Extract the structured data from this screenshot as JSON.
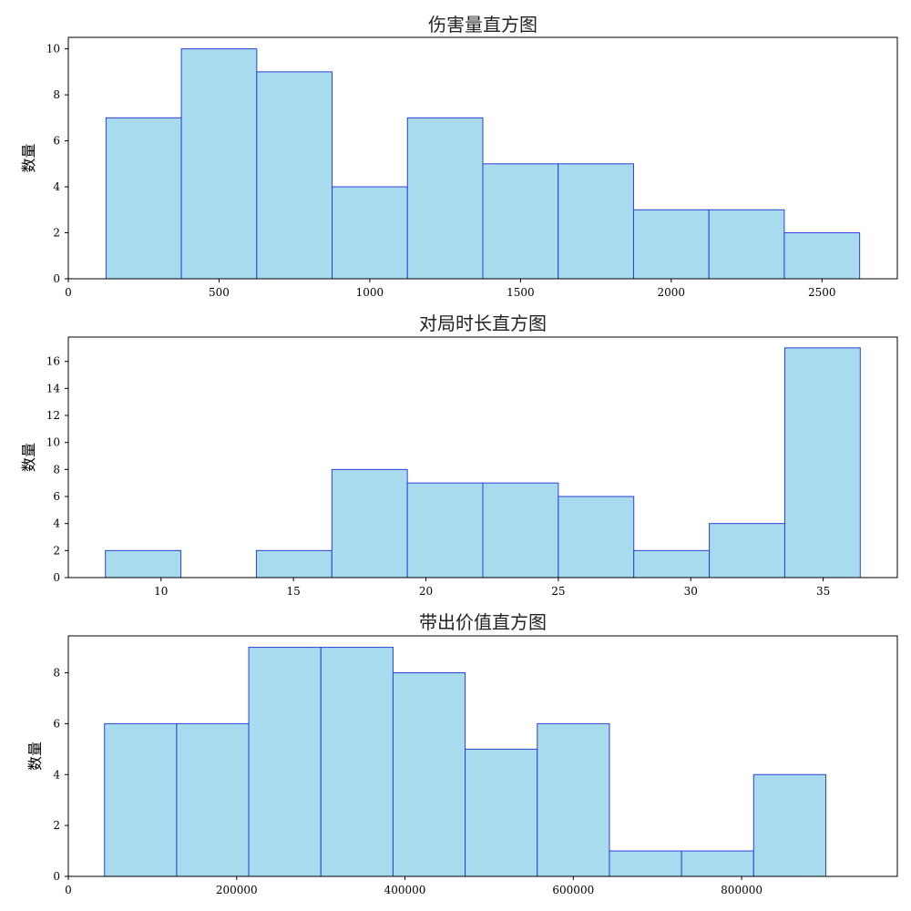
{
  "chart_data": [
    {
      "type": "bar",
      "title": "伤害量直方图",
      "ylabel": "数量",
      "xlabel": "",
      "bin_edges": [
        125,
        375,
        625,
        875,
        1125,
        1375,
        1625,
        1875,
        2125,
        2375,
        2625
      ],
      "values": [
        7,
        10,
        9,
        4,
        7,
        5,
        5,
        3,
        3,
        2
      ],
      "xlim": [
        0,
        2750
      ],
      "ylim": [
        0,
        10.5
      ],
      "xticks": [
        0,
        500,
        1000,
        1500,
        2000,
        2500
      ],
      "yticks": [
        0,
        2,
        4,
        6,
        8,
        10
      ],
      "bar_color": "#a9dbef",
      "edge_color": "#2b3fd6"
    },
    {
      "type": "bar",
      "title": "对局时长直方图",
      "ylabel": "数量",
      "xlabel": "",
      "bin_edges": [
        7.9,
        10.75,
        13.6,
        16.45,
        19.3,
        22.15,
        25.0,
        27.85,
        30.7,
        33.55,
        36.4
      ],
      "values": [
        2,
        0,
        2,
        8,
        7,
        7,
        6,
        2,
        4,
        17
      ],
      "xlim": [
        6.5,
        37.8
      ],
      "ylim": [
        0,
        17.8
      ],
      "xticks": [
        10,
        15,
        20,
        25,
        30,
        35
      ],
      "yticks": [
        0,
        2,
        4,
        6,
        8,
        10,
        12,
        14,
        16
      ],
      "bar_color": "#a9dbef",
      "edge_color": "#2b3fd6"
    },
    {
      "type": "bar",
      "title": "带出价值直方图",
      "ylabel": "数量",
      "xlabel": "",
      "bin_edges": [
        43000,
        128700,
        214400,
        300100,
        385800,
        471500,
        557200,
        642900,
        728600,
        814300,
        900000
      ],
      "values": [
        6,
        6,
        9,
        9,
        8,
        5,
        6,
        1,
        1,
        4
      ],
      "xlim": [
        0,
        985000
      ],
      "ylim": [
        0,
        9.45
      ],
      "xticks": [
        0,
        200000,
        400000,
        600000,
        800000
      ],
      "yticks": [
        0,
        2,
        4,
        6,
        8
      ],
      "bar_color": "#a9dbef",
      "edge_color": "#2b3fd6"
    }
  ]
}
